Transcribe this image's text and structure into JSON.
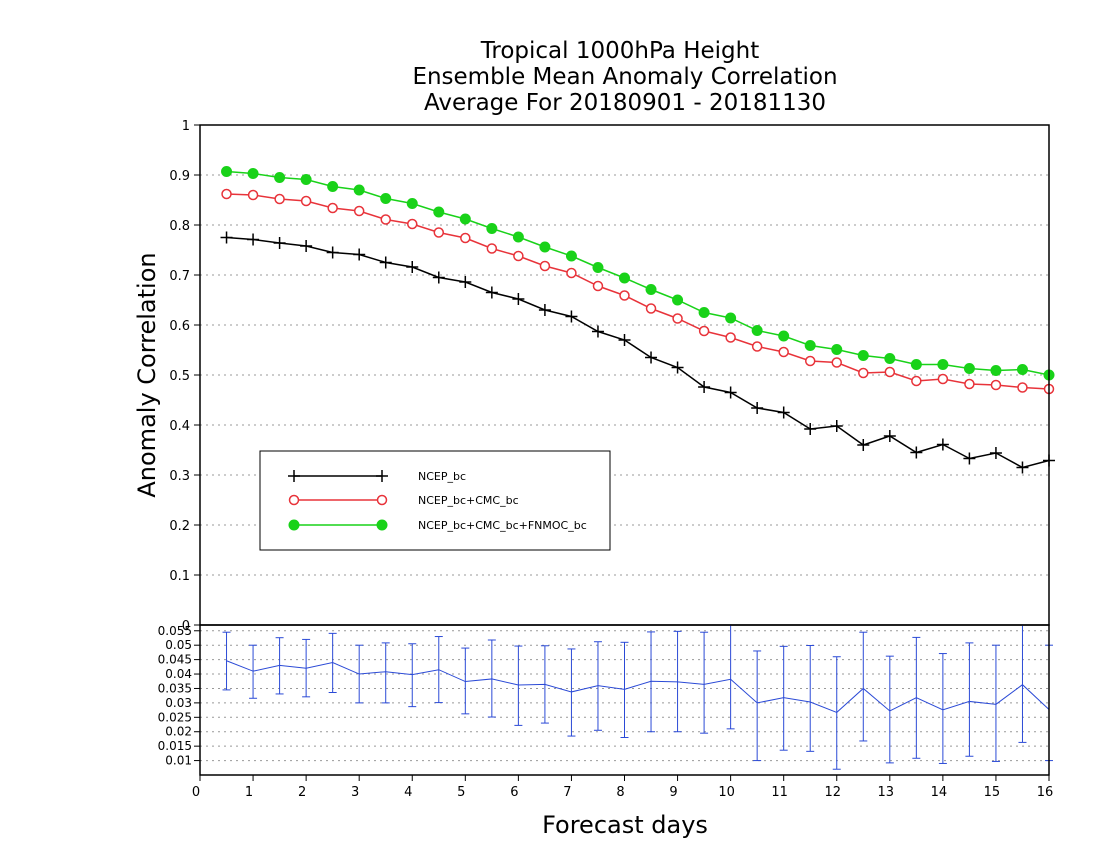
{
  "chart_data": [
    {
      "type": "line",
      "title": [
        "Tropical 1000hPa Height",
        "Ensemble Mean Anomaly Correlation",
        "Average For 20180901 - 20181130"
      ],
      "xlabel": "Forecast days",
      "ylabel": "Anomaly Correlation",
      "xlim": [
        0,
        16
      ],
      "ylim": [
        0,
        1
      ],
      "xticks": [
        "0",
        "1",
        "2",
        "3",
        "4",
        "5",
        "6",
        "7",
        "8",
        "9",
        "10",
        "11",
        "12",
        "13",
        "14",
        "15",
        "16"
      ],
      "yticks": [
        "0",
        "0.1",
        "0.2",
        "0.3",
        "0.4",
        "0.5",
        "0.6",
        "0.7",
        "0.8",
        "0.9",
        "1"
      ],
      "grid": "horizontal dotted",
      "legend_position": "left-center",
      "x": [
        0.5,
        1,
        1.5,
        2,
        2.5,
        3,
        3.5,
        4,
        4.5,
        5,
        5.5,
        6,
        6.5,
        7,
        7.5,
        8,
        8.5,
        9,
        9.5,
        10,
        10.5,
        11,
        11.5,
        12,
        12.5,
        13,
        13.5,
        14,
        14.5,
        15,
        15.5,
        16
      ],
      "series": [
        {
          "name": "NCEP_bc",
          "color": "#000000",
          "marker": "plus",
          "values": [
            0.775,
            0.771,
            0.764,
            0.758,
            0.745,
            0.741,
            0.725,
            0.716,
            0.695,
            0.686,
            0.665,
            0.652,
            0.63,
            0.617,
            0.587,
            0.57,
            0.535,
            0.515,
            0.476,
            0.465,
            0.434,
            0.425,
            0.392,
            0.398,
            0.36,
            0.378,
            0.345,
            0.361,
            0.333,
            0.344,
            0.315,
            0.329
          ]
        },
        {
          "name": "NCEP_bc+CMC_bc",
          "color": "#e8333a",
          "marker": "open-circle",
          "values": [
            0.862,
            0.86,
            0.852,
            0.848,
            0.834,
            0.828,
            0.811,
            0.802,
            0.785,
            0.774,
            0.753,
            0.738,
            0.718,
            0.704,
            0.678,
            0.659,
            0.633,
            0.613,
            0.588,
            0.575,
            0.557,
            0.546,
            0.528,
            0.525,
            0.504,
            0.506,
            0.488,
            0.492,
            0.482,
            0.48,
            0.475,
            0.472
          ]
        },
        {
          "name": "NCEP_bc+CMC_bc+FNMOC_bc",
          "color": "#19d219",
          "marker": "filled-circle",
          "values": [
            0.907,
            0.903,
            0.895,
            0.891,
            0.877,
            0.87,
            0.853,
            0.843,
            0.826,
            0.812,
            0.793,
            0.776,
            0.756,
            0.738,
            0.715,
            0.694,
            0.671,
            0.65,
            0.625,
            0.614,
            0.589,
            0.578,
            0.559,
            0.551,
            0.539,
            0.533,
            0.521,
            0.521,
            0.513,
            0.509,
            0.511,
            0.5
          ]
        }
      ]
    },
    {
      "type": "line",
      "xlabel": "",
      "ylabel": "",
      "xlim": [
        0,
        16
      ],
      "ylim": [
        0.005,
        0.057
      ],
      "yticks": [
        "0.01",
        "0.015",
        "0.02",
        "0.025",
        "0.03",
        "0.035",
        "0.04",
        "0.045",
        "0.05",
        "0.055"
      ],
      "grid": "horizontal dotted",
      "error_bars": true,
      "color": "#2b4ad6",
      "x": [
        0.5,
        1,
        1.5,
        2,
        2.5,
        3,
        3.5,
        4,
        4.5,
        5,
        5.5,
        6,
        6.5,
        7,
        7.5,
        8,
        8.5,
        9,
        9.5,
        10,
        10.5,
        11,
        11.5,
        12,
        12.5,
        13,
        13.5,
        14,
        14.5,
        15,
        15.5,
        16
      ],
      "values": [
        0.0446,
        0.041,
        0.043,
        0.042,
        0.044,
        0.04,
        0.0408,
        0.0398,
        0.0415,
        0.0374,
        0.0383,
        0.0362,
        0.0364,
        0.0338,
        0.036,
        0.0347,
        0.0375,
        0.0373,
        0.0364,
        0.0382,
        0.03,
        0.0318,
        0.0303,
        0.0267,
        0.035,
        0.0272,
        0.0318,
        0.0276,
        0.0305,
        0.0295,
        0.0363,
        0.0277
      ],
      "lower": [
        0.0345,
        0.0316,
        0.0331,
        0.0321,
        0.0336,
        0.03,
        0.03,
        0.0287,
        0.0301,
        0.0262,
        0.0251,
        0.0222,
        0.023,
        0.0185,
        0.0205,
        0.018,
        0.02,
        0.02,
        0.0195,
        0.021,
        0.01,
        0.0136,
        0.0132,
        0.007,
        0.0168,
        0.0092,
        0.0108,
        0.009,
        0.0115,
        0.0097,
        0.0163,
        0.01
      ],
      "upper": [
        0.0545,
        0.05,
        0.0526,
        0.052,
        0.0541,
        0.05,
        0.0508,
        0.0505,
        0.053,
        0.049,
        0.0518,
        0.0497,
        0.0498,
        0.0487,
        0.0512,
        0.051,
        0.0546,
        0.0548,
        0.0545,
        0.0575,
        0.048,
        0.0496,
        0.0499,
        0.046,
        0.0545,
        0.0462,
        0.0527,
        0.0471,
        0.0508,
        0.05,
        0.057,
        0.05
      ]
    }
  ]
}
